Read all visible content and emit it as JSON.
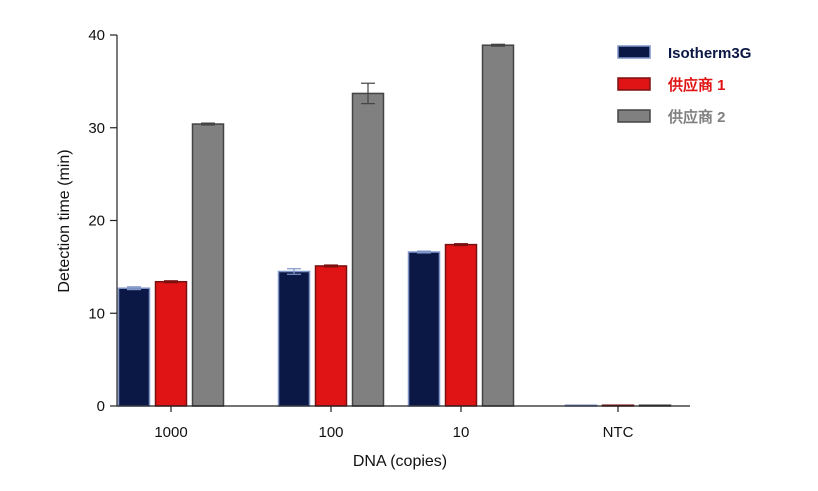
{
  "chart_data": {
    "type": "bar",
    "title": "",
    "xlabel": "DNA (copies)",
    "ylabel": "Detection time (min)",
    "ylim": [
      0,
      40
    ],
    "yticks": [
      0,
      10,
      20,
      30,
      40
    ],
    "categories": [
      "1000",
      "100",
      "10",
      "NTC"
    ],
    "series": [
      {
        "name": "Isotherm3G",
        "color": "#0b1745",
        "edge": "#7f95c8",
        "label_color": "#0b1745",
        "values": [
          12.7,
          14.5,
          16.6,
          0
        ],
        "errors": [
          0.15,
          0.3,
          0.1,
          0
        ]
      },
      {
        "name": "供应商 1",
        "color": "#e01414",
        "edge": "#7a1010",
        "label_color": "#e01414",
        "values": [
          13.4,
          15.1,
          17.4,
          0
        ],
        "errors": [
          0.1,
          0.1,
          0.1,
          0
        ]
      },
      {
        "name": "供应商 2",
        "color": "#808080",
        "edge": "#444444",
        "label_color": "#808080",
        "values": [
          30.4,
          33.7,
          38.9,
          0
        ],
        "errors": [
          0.1,
          1.1,
          0.1,
          0
        ]
      }
    ],
    "legend_position": "top-right",
    "grid": false
  }
}
